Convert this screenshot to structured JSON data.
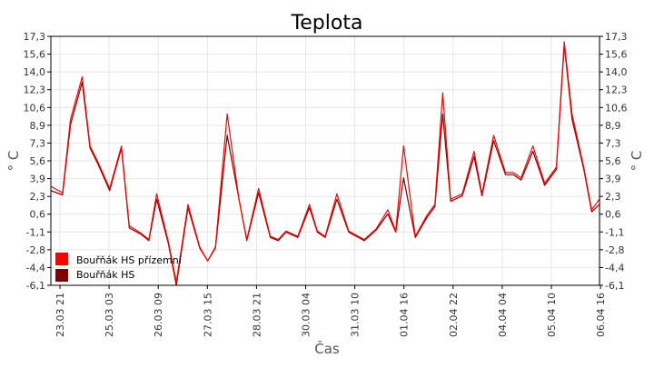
{
  "chart_data": {
    "type": "line",
    "title": "Teplota",
    "xlabel": "Čas",
    "ylabel": "° C",
    "ylim": [
      -6.1,
      17.3
    ],
    "yticks": [
      "17,3",
      "15,6",
      "14,0",
      "12,3",
      "10,6",
      "8,9",
      "7,3",
      "5,6",
      "3,9",
      "2,3",
      "0,6",
      "-1,1",
      "-2,8",
      "-4,4",
      "-6,1"
    ],
    "xlim": [
      0,
      14
    ],
    "xticks": [
      "23.03 21",
      "25.03 03",
      "26.03 09",
      "27.03 15",
      "28.03 21",
      "30.03 04",
      "31.03 10",
      "01.04 16",
      "02.04 22",
      "04.04 04",
      "05.04 10",
      "06.04 16"
    ],
    "grid": true,
    "legend_position": "bottom-left",
    "colors": {
      "series1": "#ff0000",
      "series2": "#800000",
      "grid": "#e6e6e6",
      "axis": "#000000"
    },
    "series": [
      {
        "name": "Bouřňák HS přízemní",
        "x": [
          0,
          0.3,
          0.5,
          0.8,
          1.0,
          1.2,
          1.5,
          1.8,
          2.0,
          2.3,
          2.5,
          2.7,
          3.0,
          3.2,
          3.5,
          3.8,
          4.0,
          4.2,
          4.5,
          4.8,
          5.0,
          5.3,
          5.6,
          5.8,
          6.0,
          6.3,
          6.6,
          6.8,
          7.0,
          7.3,
          7.6,
          8.0,
          8.3,
          8.6,
          8.8,
          9.0,
          9.3,
          9.6,
          9.8,
          10.0,
          10.2,
          10.5,
          10.8,
          11.0,
          11.3,
          11.6,
          11.8,
          12.0,
          12.3,
          12.6,
          12.9,
          13.1,
          13.3,
          13.6,
          13.8,
          14.0
        ],
        "values": [
          3.2,
          2.6,
          9.5,
          13.5,
          7.0,
          5.5,
          3.0,
          7.0,
          -0.5,
          -1.2,
          -1.8,
          2.5,
          -2.0,
          -5.8,
          1.5,
          -2.5,
          -3.8,
          -2.5,
          10.0,
          2.0,
          -1.8,
          3.0,
          -1.5,
          -1.8,
          -1.0,
          -1.5,
          1.5,
          -1.0,
          -1.5,
          2.5,
          -1.0,
          -1.8,
          -0.8,
          1.0,
          -1.0,
          7.0,
          -1.5,
          0.5,
          1.5,
          12.0,
          2.0,
          2.5,
          6.5,
          2.5,
          8.0,
          4.5,
          4.5,
          4.0,
          7.0,
          3.5,
          5.0,
          16.8,
          10.0,
          5.0,
          1.0,
          2.0
        ]
      },
      {
        "name": "Bouřňák HS",
        "x": [
          0,
          0.3,
          0.5,
          0.8,
          1.0,
          1.2,
          1.5,
          1.8,
          2.0,
          2.3,
          2.5,
          2.7,
          3.0,
          3.2,
          3.5,
          3.8,
          4.0,
          4.2,
          4.5,
          4.8,
          5.0,
          5.3,
          5.6,
          5.8,
          6.0,
          6.3,
          6.6,
          6.8,
          7.0,
          7.3,
          7.6,
          8.0,
          8.3,
          8.6,
          8.8,
          9.0,
          9.3,
          9.6,
          9.8,
          10.0,
          10.2,
          10.5,
          10.8,
          11.0,
          11.3,
          11.6,
          11.8,
          12.0,
          12.3,
          12.6,
          12.9,
          13.1,
          13.3,
          13.6,
          13.8,
          14.0
        ],
        "values": [
          2.8,
          2.4,
          9.0,
          13.0,
          6.8,
          5.3,
          2.8,
          6.8,
          -0.7,
          -1.3,
          -1.9,
          2.0,
          -2.2,
          -6.1,
          1.2,
          -2.6,
          -3.8,
          -2.6,
          8.0,
          2.0,
          -1.9,
          2.6,
          -1.6,
          -1.9,
          -1.1,
          -1.6,
          1.2,
          -1.1,
          -1.6,
          2.0,
          -1.1,
          -1.9,
          -0.9,
          0.6,
          -1.1,
          4.0,
          -1.6,
          0.3,
          1.3,
          10.0,
          1.8,
          2.3,
          6.0,
          2.3,
          7.5,
          4.3,
          4.3,
          3.8,
          6.5,
          3.3,
          4.8,
          16.5,
          9.5,
          4.8,
          0.8,
          1.5
        ]
      }
    ]
  }
}
